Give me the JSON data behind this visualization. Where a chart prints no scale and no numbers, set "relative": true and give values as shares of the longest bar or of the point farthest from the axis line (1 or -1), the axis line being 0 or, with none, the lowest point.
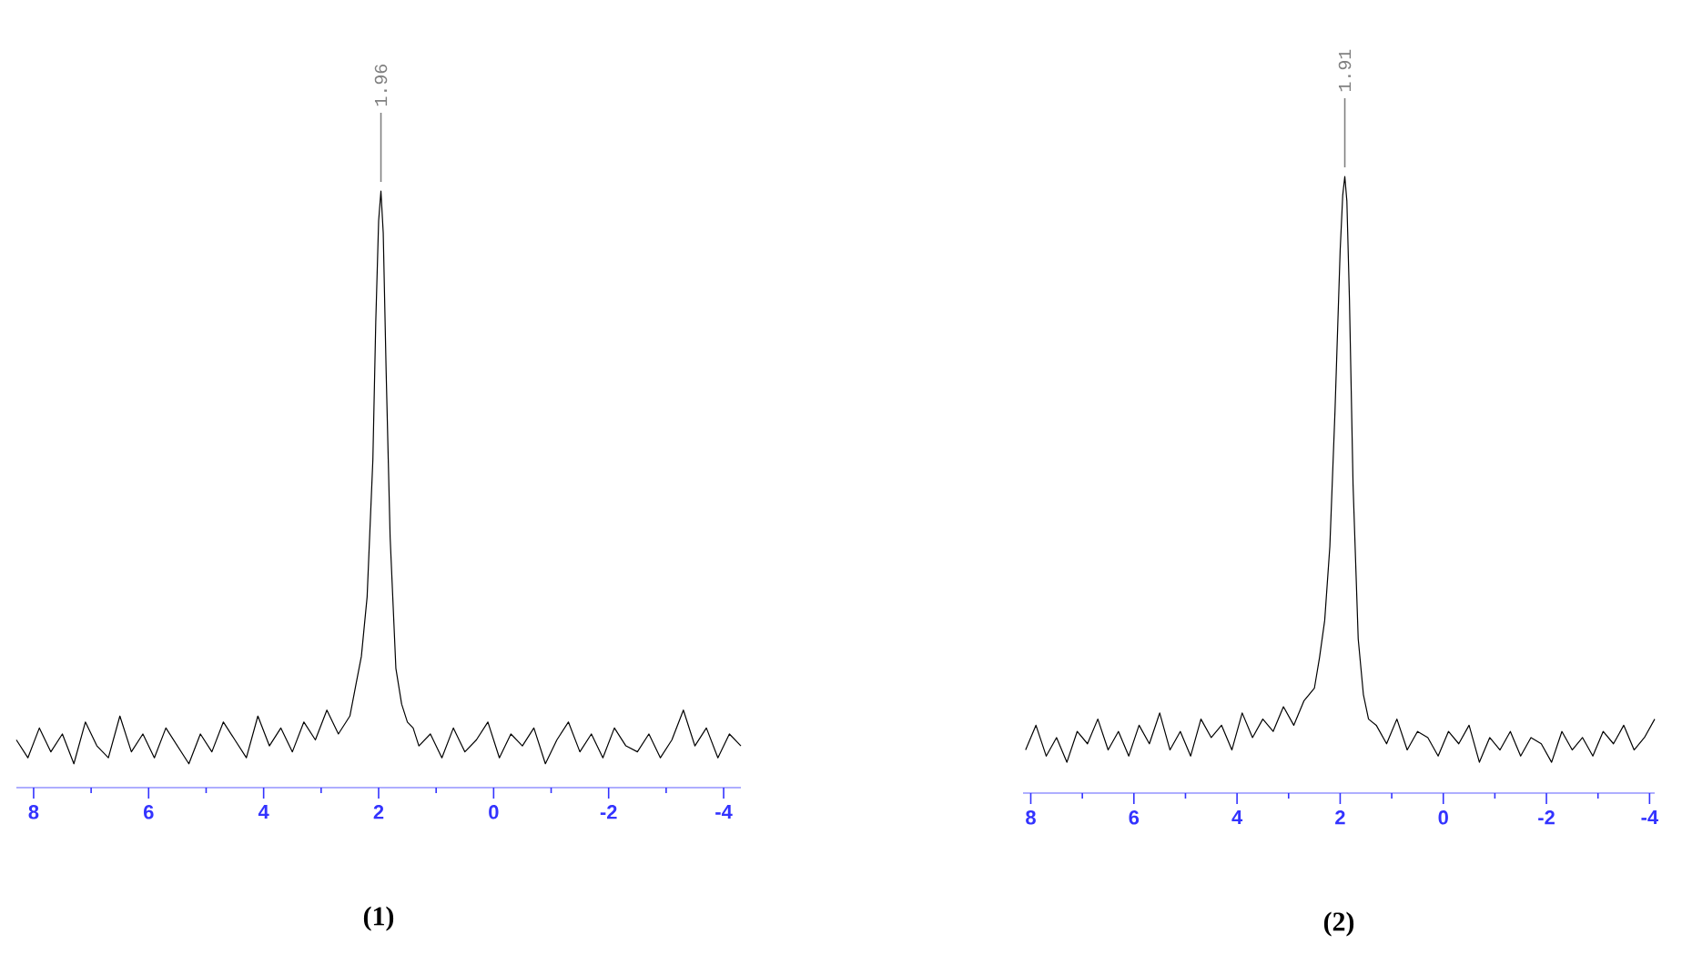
{
  "chart_data": [
    {
      "type": "line",
      "title": "**(1)**",
      "relative": true,
      "color": "#000000",
      "xlim": [
        8.3,
        -4.3
      ],
      "xticks": [
        8,
        {
          "value": 7,
          "label": null
        },
        6,
        {
          "value": 5,
          "label": null
        },
        4,
        {
          "value": 3,
          "label": null
        },
        2,
        {
          "value": 1,
          "label": null
        },
        0,
        {
          "value": -1,
          "label": null
        },
        -2,
        {
          "value": -3,
          "label": null
        },
        -4
      ],
      "x": [
        8.3,
        8.1,
        7.9,
        7.7,
        7.5,
        7.3,
        7.1,
        6.9,
        6.7,
        6.5,
        6.3,
        6.1,
        5.9,
        5.7,
        5.5,
        5.3,
        5.1,
        4.9,
        4.7,
        4.5,
        4.3,
        4.1,
        3.9,
        3.7,
        3.5,
        3.3,
        3.1,
        2.9,
        2.7,
        2.5,
        2.4,
        2.3,
        2.2,
        2.1,
        2.05,
        2.0,
        1.96,
        1.92,
        1.87,
        1.8,
        1.7,
        1.6,
        1.5,
        1.4,
        1.3,
        1.1,
        0.9,
        0.7,
        0.5,
        0.3,
        0.1,
        -0.1,
        -0.3,
        -0.5,
        -0.7,
        -0.9,
        -1.1,
        -1.3,
        -1.5,
        -1.7,
        -1.9,
        -2.1,
        -2.3,
        -2.5,
        -2.7,
        -2.9,
        -3.1,
        -3.3,
        -3.5,
        -3.7,
        -3.9,
        -4.1,
        -4.3
      ],
      "values": [
        0.08,
        0.05,
        0.1,
        0.06,
        0.09,
        0.04,
        0.11,
        0.07,
        0.05,
        0.12,
        0.06,
        0.09,
        0.05,
        0.1,
        0.07,
        0.04,
        0.09,
        0.06,
        0.11,
        0.08,
        0.05,
        0.12,
        0.07,
        0.1,
        0.06,
        0.11,
        0.08,
        0.13,
        0.09,
        0.12,
        0.17,
        0.22,
        0.32,
        0.55,
        0.78,
        0.95,
        1,
        0.93,
        0.7,
        0.42,
        0.2,
        0.14,
        0.11,
        0.1,
        0.07,
        0.09,
        0.05,
        0.1,
        0.06,
        0.08,
        0.11,
        0.05,
        0.09,
        0.07,
        0.1,
        0.04,
        0.08,
        0.11,
        0.06,
        0.09,
        0.05,
        0.1,
        0.07,
        0.06,
        0.09,
        0.05,
        0.08,
        0.13,
        0.07,
        0.1,
        0.05,
        0.09,
        0.07
      ],
      "annotations": [
        {
          "text": "1.96",
          "x": 1.96,
          "y": 1
        }
      ]
    },
    {
      "type": "line",
      "title": "**(2)**",
      "relative": true,
      "color": "#000000",
      "xlim": [
        8.15,
        -4.1
      ],
      "xticks": [
        8,
        {
          "value": 7,
          "label": null
        },
        6,
        {
          "value": 5,
          "label": null
        },
        4,
        {
          "value": 3,
          "label": null
        },
        2,
        {
          "value": 1,
          "label": null
        },
        0,
        {
          "value": -1,
          "label": null
        },
        -2,
        {
          "value": -3,
          "label": null
        },
        -4
      ],
      "x": [
        8.1,
        7.9,
        7.7,
        7.5,
        7.3,
        7.1,
        6.9,
        6.7,
        6.5,
        6.3,
        6.1,
        5.9,
        5.7,
        5.5,
        5.3,
        5.1,
        4.9,
        4.7,
        4.5,
        4.3,
        4.1,
        3.9,
        3.7,
        3.5,
        3.3,
        3.1,
        2.9,
        2.7,
        2.5,
        2.4,
        2.3,
        2.2,
        2.1,
        2.0,
        1.95,
        1.91,
        1.87,
        1.82,
        1.75,
        1.65,
        1.55,
        1.45,
        1.3,
        1.1,
        0.9,
        0.7,
        0.5,
        0.3,
        0.1,
        -0.1,
        -0.3,
        -0.5,
        -0.7,
        -0.9,
        -1.1,
        -1.3,
        -1.5,
        -1.7,
        -1.9,
        -2.1,
        -2.3,
        -2.5,
        -2.7,
        -2.9,
        -3.1,
        -3.3,
        -3.5,
        -3.7,
        -3.9,
        -4.1
      ],
      "values": [
        0.07,
        0.11,
        0.06,
        0.09,
        0.05,
        0.1,
        0.08,
        0.12,
        0.07,
        0.1,
        0.06,
        0.11,
        0.08,
        0.13,
        0.07,
        0.1,
        0.06,
        0.12,
        0.09,
        0.11,
        0.07,
        0.13,
        0.09,
        0.12,
        0.1,
        0.14,
        0.11,
        0.15,
        0.17,
        0.22,
        0.28,
        0.4,
        0.62,
        0.88,
        0.97,
        1,
        0.96,
        0.8,
        0.5,
        0.25,
        0.16,
        0.12,
        0.11,
        0.08,
        0.12,
        0.07,
        0.1,
        0.09,
        0.06,
        0.1,
        0.08,
        0.11,
        0.05,
        0.09,
        0.07,
        0.1,
        0.06,
        0.09,
        0.08,
        0.05,
        0.1,
        0.07,
        0.09,
        0.06,
        0.1,
        0.08,
        0.11,
        0.07,
        0.09,
        0.12
      ],
      "annotations": [
        {
          "text": "1.91",
          "x": 1.91,
          "y": 1
        }
      ]
    }
  ]
}
